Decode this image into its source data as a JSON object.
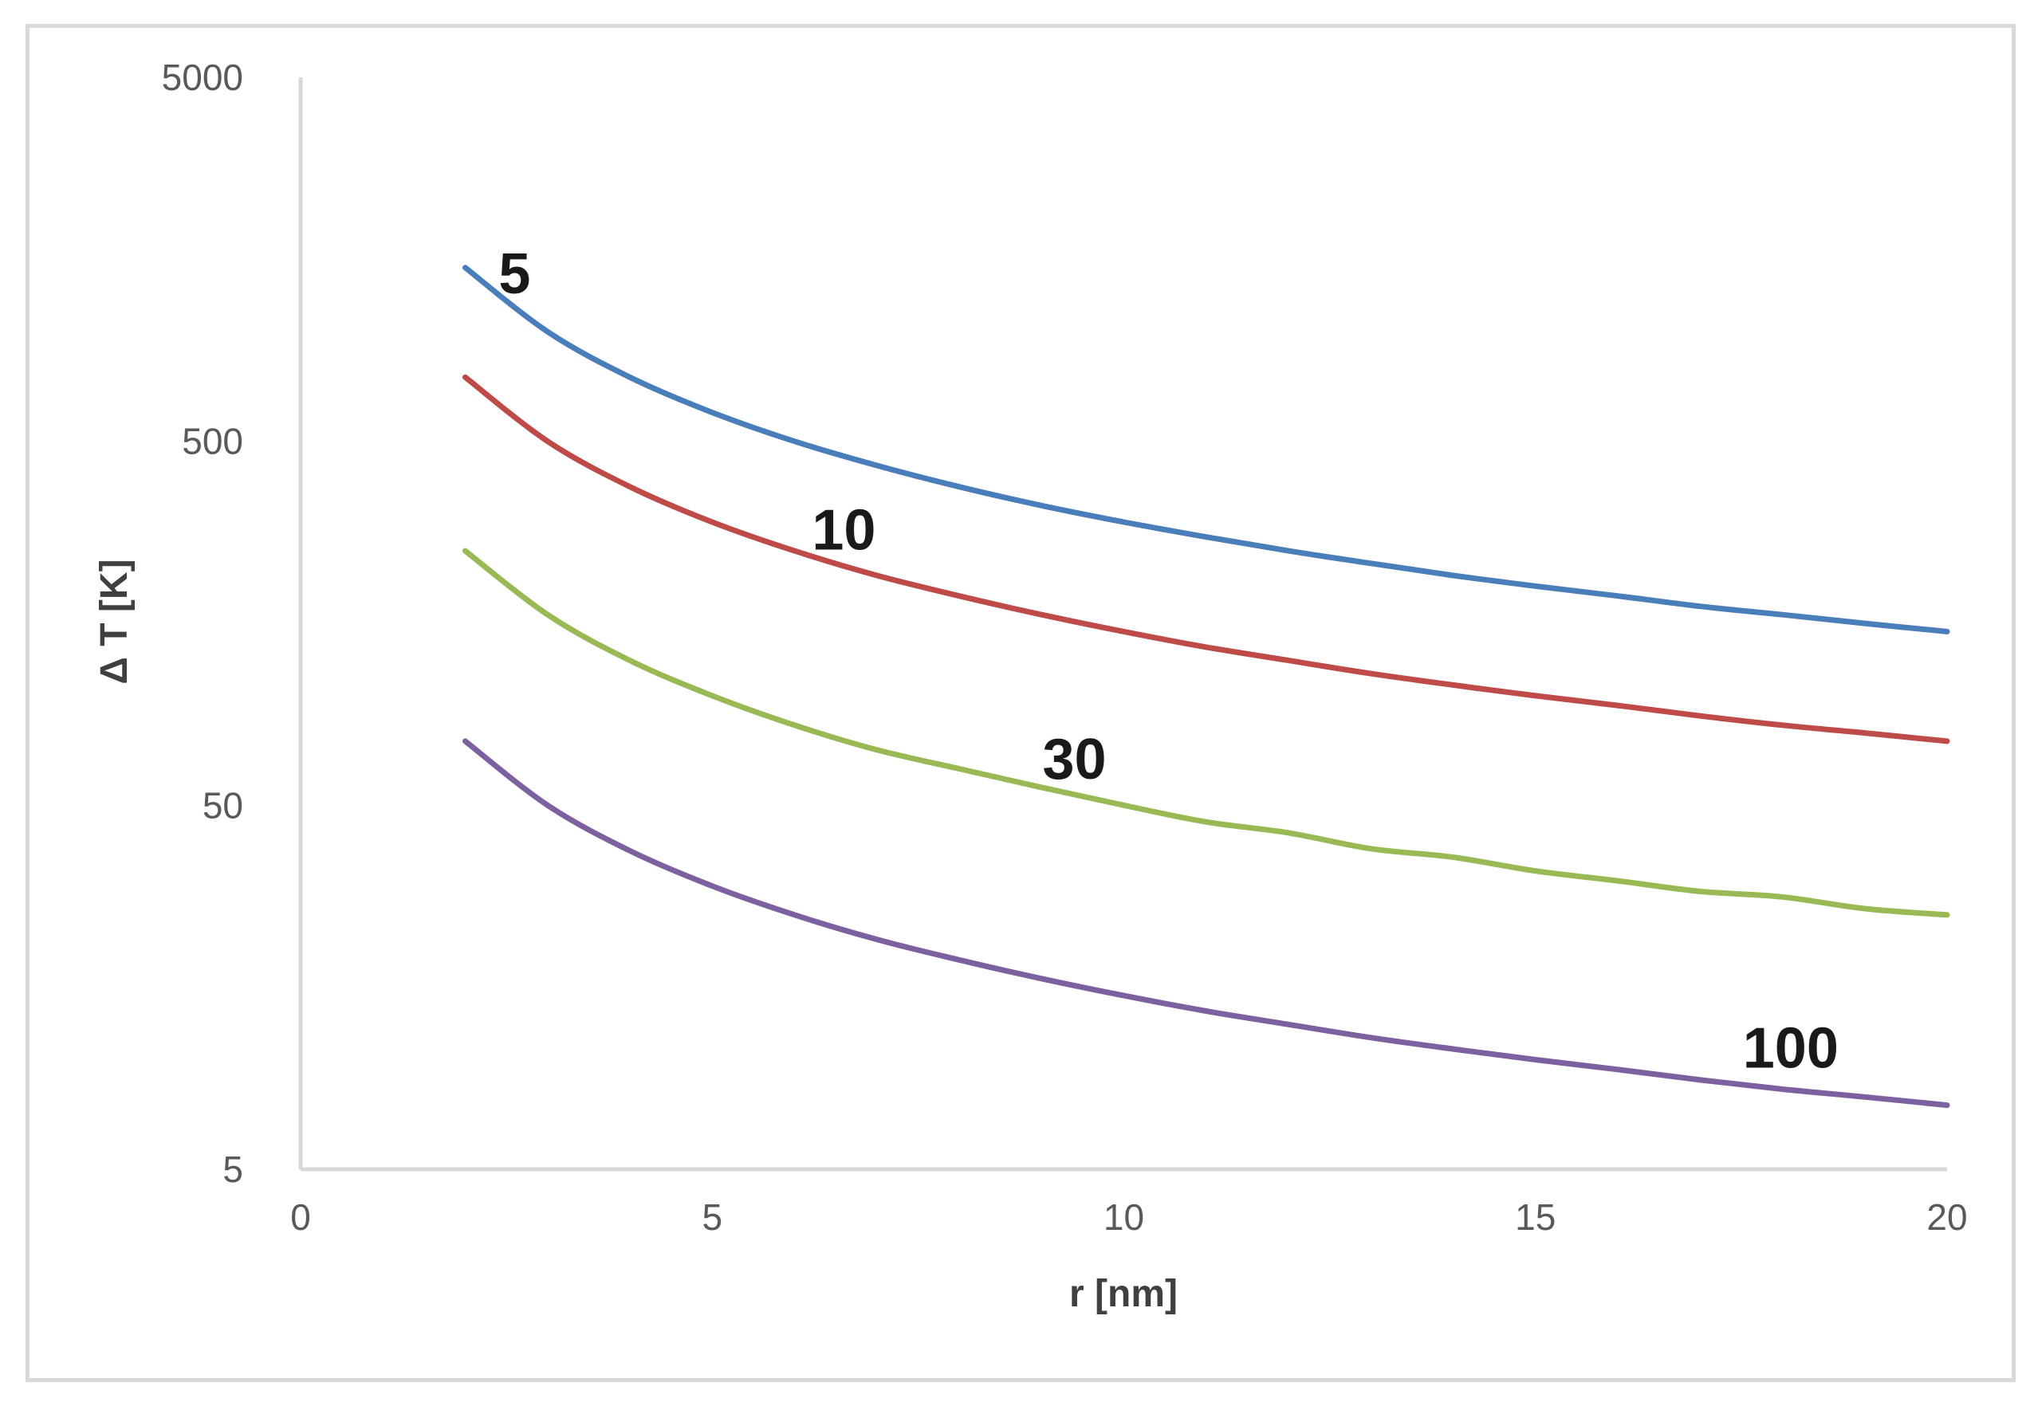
{
  "chart_data": {
    "type": "line",
    "title": "",
    "xlabel": "r [nm]",
    "ylabel": "Δ T [K]",
    "xlim": [
      0,
      20
    ],
    "ylim": [
      5,
      5000
    ],
    "yscale": "log",
    "grid": false,
    "legend": "none (labels placed on curves)",
    "x_ticks": [
      "0",
      "5",
      "10",
      "15",
      "20"
    ],
    "y_ticks": [
      "5",
      "50",
      "500",
      "5000"
    ],
    "x": [
      2,
      3,
      4,
      5,
      6,
      7,
      8,
      9,
      10,
      11,
      12,
      13,
      14,
      15,
      16,
      17,
      18,
      19,
      20
    ],
    "series": [
      {
        "name": "5",
        "color": "#4a7ebb",
        "values": [
          1500,
          1000,
          750,
          600,
          500,
          429,
          375,
          333,
          300,
          273,
          250,
          231,
          214,
          200,
          188,
          176,
          167,
          158,
          150
        ]
      },
      {
        "name": "10",
        "color": "#be4b48",
        "values": [
          750,
          500,
          375,
          300,
          250,
          214,
          188,
          167,
          150,
          136,
          125,
          115,
          107,
          100,
          94,
          88,
          83,
          79,
          75
        ]
      },
      {
        "name": "30",
        "color": "#98b954",
        "values": [
          250,
          167,
          125,
          100,
          83,
          71,
          63,
          56,
          50,
          45,
          42,
          38,
          36,
          33,
          31,
          29,
          28,
          26,
          25
        ]
      },
      {
        "name": "100",
        "color": "#7d60a0",
        "values": [
          75,
          50,
          37.5,
          30,
          25,
          21.4,
          18.8,
          16.7,
          15,
          13.6,
          12.5,
          11.5,
          10.7,
          10,
          9.4,
          8.8,
          8.3,
          7.9,
          7.5
        ]
      }
    ]
  }
}
